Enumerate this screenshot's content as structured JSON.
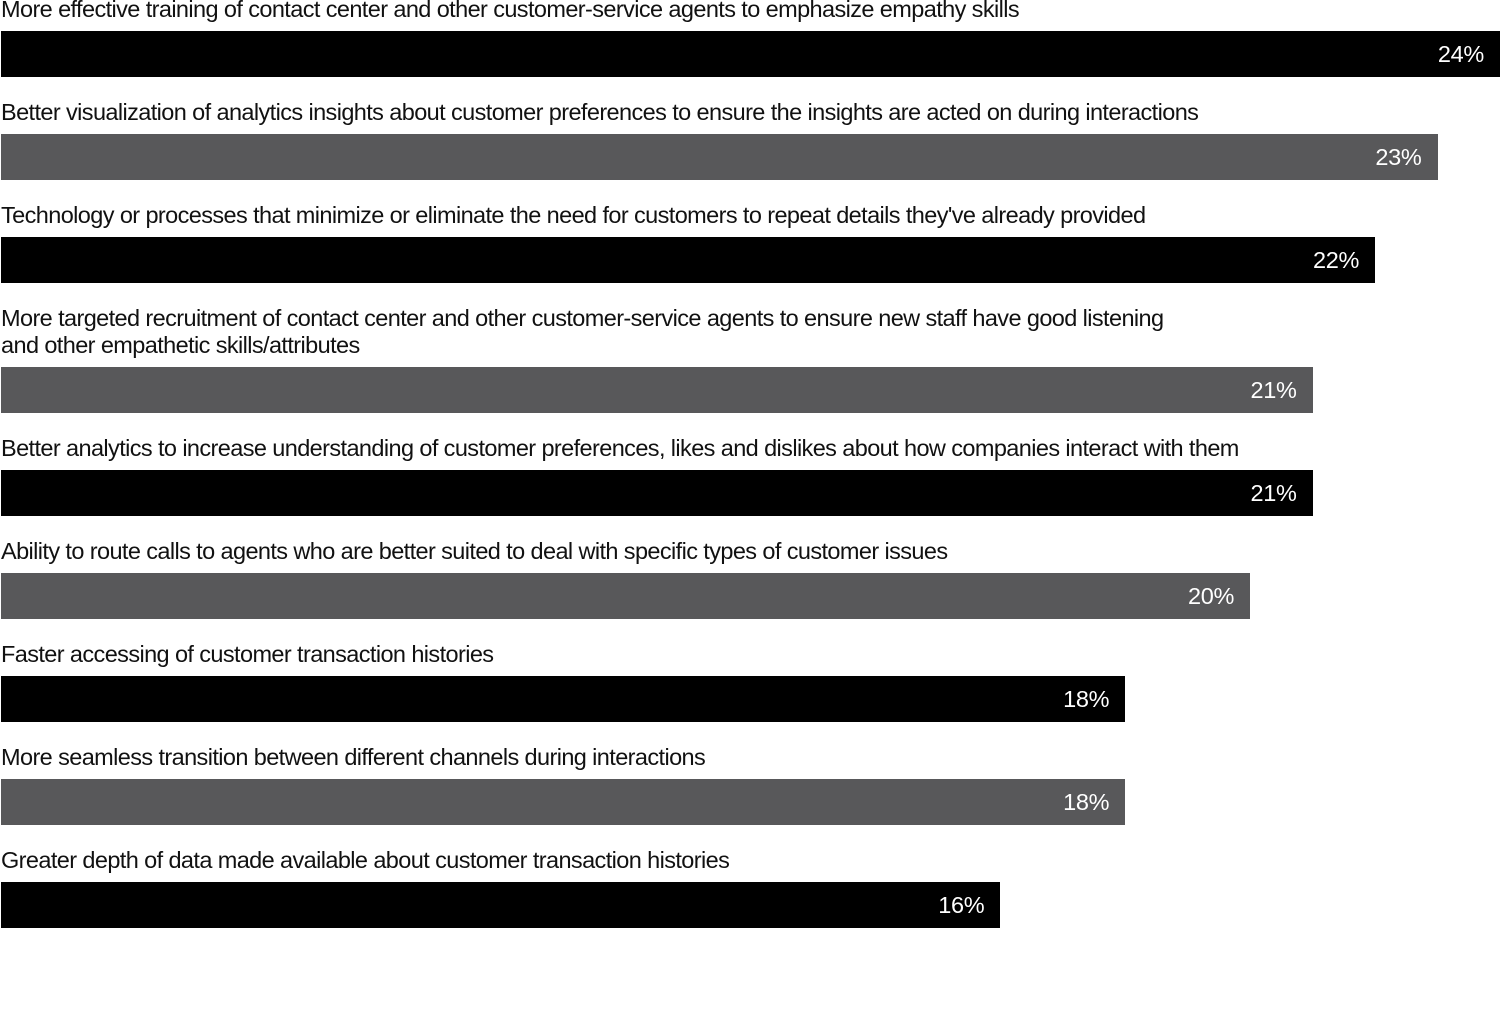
{
  "chart_data": {
    "type": "bar",
    "orientation": "horizontal",
    "categories": [
      [
        "More effective training of contact center and other customer-service agents to emphasize empathy skills"
      ],
      [
        "Better visualization of analytics insights about customer preferences to ensure the insights are acted on during interactions"
      ],
      [
        "Technology or processes that minimize or eliminate the need for customers to repeat details they've already provided"
      ],
      [
        "More targeted recruitment of contact center and other customer-service agents to ensure new staff have good listening",
        "and other empathetic skills/attributes"
      ],
      [
        "Better analytics to increase understanding of customer preferences, likes and dislikes about how companies interact with them"
      ],
      [
        "Ability to route calls to agents who are better suited to deal with specific types of customer issues"
      ],
      [
        "Faster accessing of customer transaction histories"
      ],
      [
        "More seamless transition between different channels during interactions"
      ],
      [
        "Greater depth of data made available about customer transaction histories"
      ]
    ],
    "values": [
      24,
      23,
      22,
      21,
      21,
      20,
      18,
      18,
      16
    ],
    "value_labels": [
      "24%",
      "23%",
      "22%",
      "21%",
      "21%",
      "20%",
      "18%",
      "18%",
      "16%"
    ],
    "unit": "%",
    "xlim": [
      0,
      24
    ],
    "colors": [
      "#000000",
      "#58585a"
    ],
    "grid": false,
    "legend": "none"
  }
}
